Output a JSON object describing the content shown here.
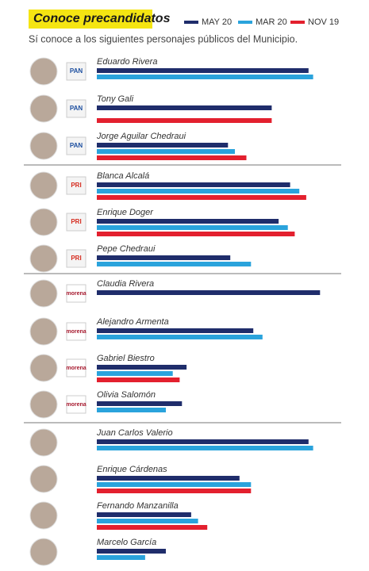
{
  "chart_data": {
    "type": "bar",
    "title": "Conoce precandidatos",
    "subtitle": "Sí conoce a los siguientes personajes públicos del Municipio.",
    "categories": [
      "Eduardo Rivera",
      "Tony Gali",
      "Jorge Aguilar Chedraui",
      "Blanca Alcalá",
      "Enrique Doger",
      "Pepe Chedraui",
      "Claudia Rivera",
      "Alejandro Armenta",
      "Gabriel Biestro",
      "Olivia Salomón",
      "Juan Carlos Valerio",
      "Enrique Cárdenas",
      "Fernando Manzanilla",
      "Marcelo García"
    ],
    "logos": [
      "PAN",
      "PAN",
      "PAN",
      "PRI",
      "PRI",
      "PRI",
      "morena",
      "morena",
      "morena",
      "morena",
      null,
      null,
      null,
      null
    ],
    "series": [
      {
        "name": "MAY 20",
        "color": "#1f2d6b",
        "values": [
          92,
          76,
          57,
          84,
          79,
          58,
          97,
          68,
          39,
          37,
          92,
          62,
          41,
          30
        ]
      },
      {
        "name": "MAR 20",
        "color": "#2aa3dc",
        "values": [
          94,
          null,
          60,
          88,
          83,
          67,
          null,
          72,
          33,
          30,
          94,
          67,
          44,
          21
        ]
      },
      {
        "name": "NOV 19",
        "color": "#e3202e",
        "values": [
          null,
          76,
          65,
          91,
          86,
          null,
          null,
          null,
          36,
          null,
          null,
          67,
          48,
          null
        ]
      }
    ]
  }
}
